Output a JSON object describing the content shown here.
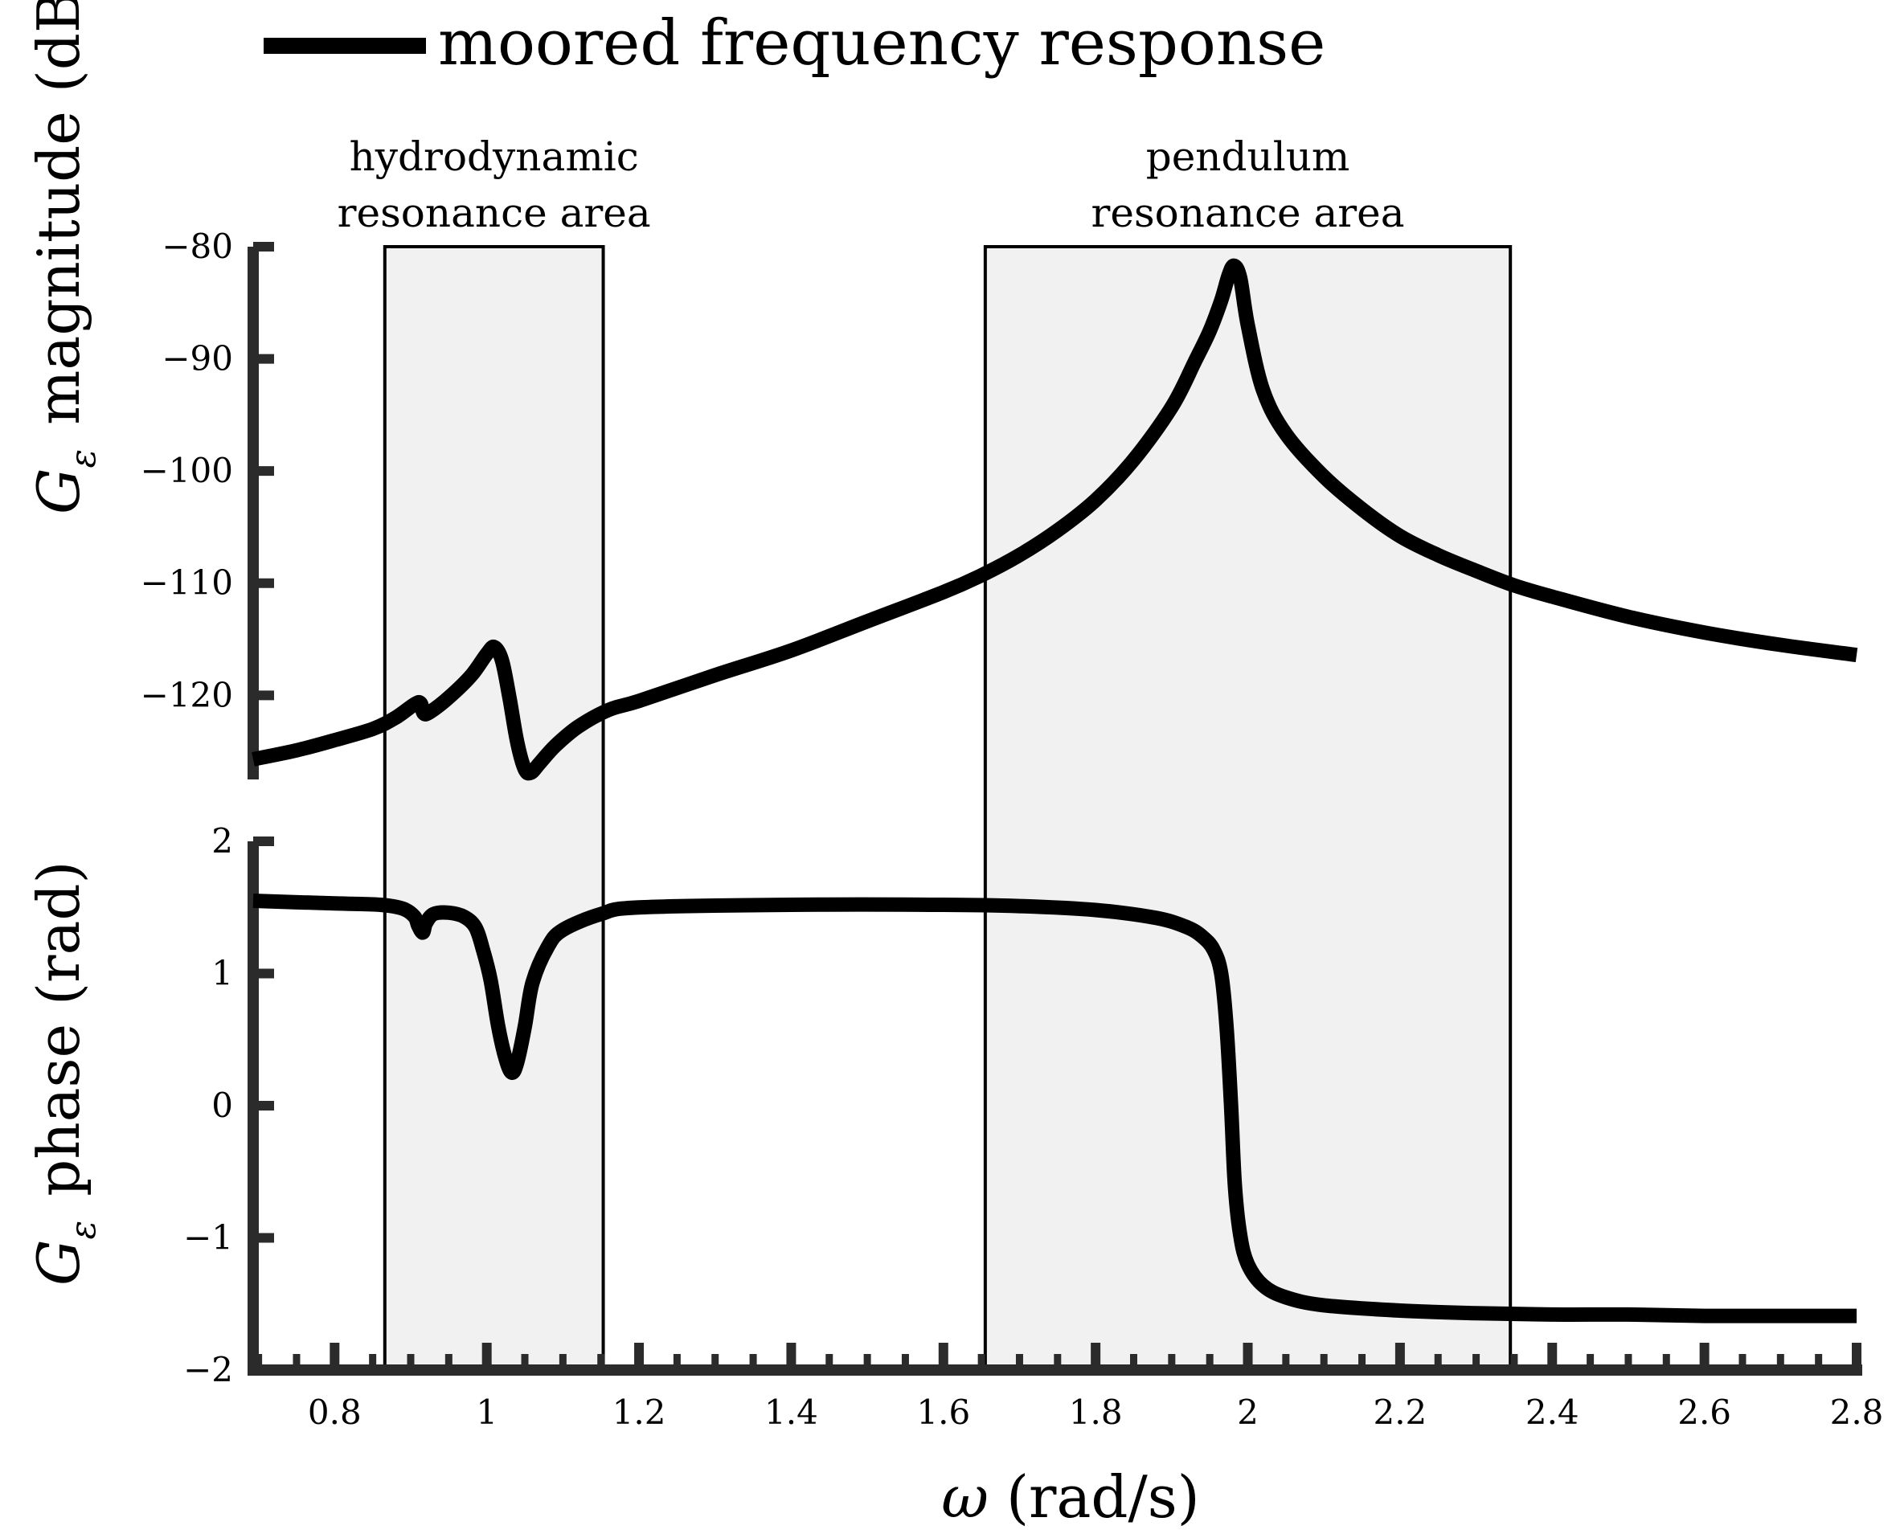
{
  "chart_data": {
    "type": "line",
    "legend": {
      "label": "moored frequency response",
      "placement": "top"
    },
    "x": {
      "label_symbol": "ω",
      "label_unit": "(rad/s)",
      "range": [
        0.693,
        2.8
      ],
      "ticks": [
        0.8,
        1,
        1.2,
        1.4,
        1.6,
        1.8,
        2,
        2.2,
        2.4,
        2.6,
        2.8
      ],
      "tick_labels": [
        "0.8",
        "1",
        "1.2",
        "1.4",
        "1.6",
        "1.8",
        "2",
        "2.2",
        "2.4",
        "2.6",
        "2.8"
      ]
    },
    "regions": [
      {
        "name": "hydrodynamic",
        "line1": "hydrodynamic",
        "line2": "resonance area",
        "x_range": [
          0.866,
          1.153
        ],
        "fill": "#f1f1f1"
      },
      {
        "name": "pendulum",
        "line1": "pendulum",
        "line2": "resonance area",
        "x_range": [
          1.655,
          2.345
        ],
        "fill": "#f1f1f1"
      }
    ],
    "panels": [
      {
        "name": "magnitude",
        "ylabel_symbol": "G",
        "ylabel_sub": "ε",
        "ylabel_text": "magnitude (dB)",
        "ylim": [
          -127.5,
          -80
        ],
        "yticks": [
          -80,
          -90,
          -100,
          -110,
          -120
        ],
        "ytick_labels": [
          "−80",
          "−90",
          "−100",
          "−110",
          "−120"
        ],
        "series": {
          "name": "moored frequency response",
          "x": [
            0.693,
            0.75,
            0.8,
            0.85,
            0.88,
            0.905,
            0.913,
            0.917,
            0.925,
            0.95,
            0.98,
            1.0,
            1.01,
            1.02,
            1.03,
            1.04,
            1.05,
            1.058,
            1.07,
            1.09,
            1.12,
            1.16,
            1.2,
            1.3,
            1.4,
            1.5,
            1.6,
            1.65,
            1.7,
            1.75,
            1.8,
            1.85,
            1.9,
            1.93,
            1.95,
            1.965,
            1.975,
            1.982,
            1.99,
            2.0,
            2.02,
            2.05,
            2.1,
            2.15,
            2.2,
            2.25,
            2.3,
            2.35,
            2.4,
            2.5,
            2.6,
            2.7,
            2.8
          ],
          "y": [
            -125.7,
            -124.9,
            -124.0,
            -123.0,
            -122.0,
            -120.8,
            -120.7,
            -121.6,
            -121.5,
            -120.2,
            -118.2,
            -116.3,
            -115.7,
            -116.9,
            -120.3,
            -124.2,
            -126.6,
            -126.9,
            -126.0,
            -124.5,
            -122.8,
            -121.3,
            -120.5,
            -118.2,
            -116.0,
            -113.4,
            -110.8,
            -109.3,
            -107.5,
            -105.3,
            -102.6,
            -99.0,
            -94.3,
            -90.3,
            -87.5,
            -84.8,
            -82.5,
            -81.7,
            -82.8,
            -87.0,
            -92.8,
            -96.7,
            -100.5,
            -103.4,
            -105.8,
            -107.5,
            -108.9,
            -110.2,
            -111.2,
            -113.0,
            -114.4,
            -115.5,
            -116.4
          ]
        }
      },
      {
        "name": "phase",
        "ylabel_symbol": "G",
        "ylabel_sub": "ε",
        "ylabel_text": "phase (rad)",
        "ylim": [
          -2,
          2
        ],
        "yticks": [
          2,
          1,
          0,
          -1,
          -2
        ],
        "ytick_labels": [
          "2",
          "1",
          "0",
          "−1",
          "−2"
        ],
        "series": {
          "name": "moored frequency response",
          "x": [
            0.693,
            0.8,
            0.86,
            0.89,
            0.905,
            0.91,
            0.916,
            0.92,
            0.93,
            0.95,
            0.97,
            0.985,
            0.995,
            1.005,
            1.015,
            1.025,
            1.033,
            1.04,
            1.05,
            1.06,
            1.08,
            1.1,
            1.15,
            1.2,
            1.4,
            1.6,
            1.7,
            1.8,
            1.88,
            1.92,
            1.94,
            1.955,
            1.965,
            1.972,
            1.978,
            1.983,
            1.99,
            2.0,
            2.02,
            2.05,
            2.1,
            2.2,
            2.3,
            2.4,
            2.5,
            2.6,
            2.7,
            2.8
          ],
          "y": [
            1.55,
            1.53,
            1.52,
            1.49,
            1.43,
            1.36,
            1.31,
            1.38,
            1.45,
            1.46,
            1.43,
            1.35,
            1.18,
            0.95,
            0.6,
            0.35,
            0.25,
            0.33,
            0.6,
            0.93,
            1.2,
            1.33,
            1.45,
            1.5,
            1.52,
            1.52,
            1.51,
            1.48,
            1.42,
            1.35,
            1.28,
            1.18,
            1.0,
            0.6,
            0.0,
            -0.6,
            -0.98,
            -1.2,
            -1.36,
            -1.45,
            -1.51,
            -1.55,
            -1.57,
            -1.58,
            -1.58,
            -1.59,
            -1.59,
            -1.59
          ]
        }
      }
    ]
  }
}
